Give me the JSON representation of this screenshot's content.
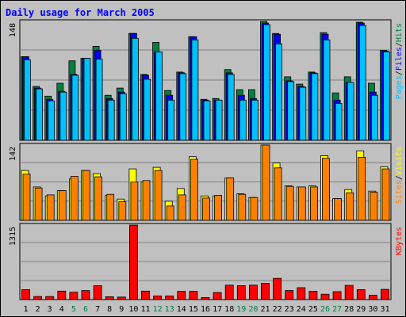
{
  "colors": {
    "background": "#c0c0c0",
    "title": "#0000ff",
    "hits": "#008040",
    "files": "#0000ff",
    "pages": "#00c0ff",
    "visits": "#ffff00",
    "sites": "#ff8000",
    "kbytes": "#ff0000"
  },
  "chart_data": {
    "type": "bar",
    "title": "Daily usage for March 2005",
    "categories": [
      "1",
      "2",
      "3",
      "4",
      "5",
      "6",
      "7",
      "8",
      "9",
      "10",
      "11",
      "12",
      "13",
      "14",
      "15",
      "16",
      "17",
      "18",
      "19",
      "20",
      "21",
      "22",
      "23",
      "24",
      "25",
      "26",
      "27",
      "28",
      "29",
      "30",
      "31"
    ],
    "weekend_days": [
      "5",
      "6",
      "12",
      "13",
      "19",
      "20",
      "26",
      "27"
    ],
    "grid": true,
    "panels": [
      {
        "id": "hits-files-pages",
        "ymax_label": "148",
        "ylim": [
          0,
          148
        ],
        "label_parts": [
          "Pages",
          "/",
          "Files",
          "/",
          "Hits"
        ],
        "series": [
          {
            "name": "Hits",
            "values": [
              104,
              67,
              55,
              71,
              99,
              102,
              117,
              56,
              65,
              133,
              82,
              122,
              62,
              85,
              129,
              51,
              52,
              88,
              63,
              63,
              148,
              133,
              79,
              70,
              85,
              134,
              59,
              79,
              147,
              71,
              112
            ]
          },
          {
            "name": "Files",
            "values": [
              104,
              65,
              51,
              61,
              82,
              102,
              112,
              52,
              60,
              133,
              81,
              110,
              56,
              84,
              129,
              50,
              50,
              84,
              56,
              52,
              146,
              132,
              74,
              67,
              84,
              132,
              50,
              72,
              146,
              60,
              111
            ]
          },
          {
            "name": "Pages",
            "values": [
              100,
              64,
              49,
              60,
              81,
              102,
              101,
              50,
              58,
              127,
              76,
              110,
              50,
              83,
              125,
              49,
              50,
              82,
              50,
              50,
              144,
              120,
              73,
              66,
              83,
              125,
              46,
              72,
              143,
              56,
              110
            ]
          }
        ]
      },
      {
        "id": "visits-sites",
        "ymax_label": "142",
        "ylim": [
          0,
          142
        ],
        "label_parts": [
          "Sites",
          "/",
          "Visits"
        ],
        "series": [
          {
            "name": "Visits",
            "values": [
              94,
              63,
              46,
              56,
              78,
              94,
              88,
              47,
              40,
              97,
              72,
              100,
              36,
              60,
              120,
              46,
              46,
              80,
              50,
              43,
              142,
              108,
              65,
              63,
              65,
              122,
              41,
              58,
              131,
              55,
              101
            ]
          },
          {
            "name": "Sites",
            "values": [
              87,
              61,
              48,
              56,
              83,
              94,
              82,
              49,
              35,
              72,
              75,
              94,
              27,
              48,
              115,
              42,
              47,
              80,
              49,
              43,
              142,
              99,
              64,
              63,
              63,
              117,
              41,
              52,
              119,
              53,
              97
            ]
          }
        ]
      },
      {
        "id": "kbytes",
        "ymax_label": "1315",
        "ylim": [
          0,
          1315
        ],
        "label_parts": [
          "KBytes"
        ],
        "series": [
          {
            "name": "KBytes",
            "values": [
              175,
              55,
              55,
              150,
              130,
              160,
              245,
              50,
              45,
              1315,
              150,
              65,
              65,
              145,
              145,
              35,
              125,
              255,
              245,
              255,
              285,
              375,
              160,
              210,
              145,
              95,
              140,
              250,
              175,
              75,
              180
            ]
          }
        ]
      }
    ]
  }
}
